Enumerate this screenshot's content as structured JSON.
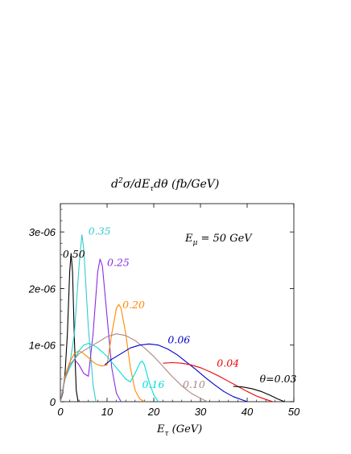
{
  "chart_data": {
    "type": "line",
    "title": "d²σ/dE_τdθ (fb/GeV)",
    "title_parts": {
      "d": "d",
      "sup": "2",
      "rest": "σ/dE",
      "sub": "τ",
      "tail": "dθ (fb/GeV)"
    },
    "xlabel": "E_τ (GeV)",
    "xlabel_parts": {
      "main": "E",
      "sub": "τ",
      "tail": " (GeV)"
    },
    "ylabel": "",
    "xlim": [
      0,
      50
    ],
    "ylim": [
      0,
      3.5e-06
    ],
    "xticks": [
      0,
      10,
      20,
      30,
      40,
      50
    ],
    "xtick_labels": [
      "0",
      "10",
      "20",
      "30",
      "40",
      "50"
    ],
    "yticks": [
      0,
      1e-06,
      2e-06,
      3e-06
    ],
    "ytick_labels": [
      "0",
      "1e-06",
      "2e-06",
      "3e-06"
    ],
    "grid": false,
    "annotation": {
      "main": "E",
      "sub": "μ",
      "tail": " = 50 GeV"
    },
    "series": [
      {
        "name": "0.50",
        "color": "#000000",
        "points": [
          [
            0,
            0
          ],
          [
            0.5,
            1.5e-07
          ],
          [
            1,
            5e-07
          ],
          [
            1.5,
            1.2e-06
          ],
          [
            2,
            2.3e-06
          ],
          [
            2.3,
            2.62e-06
          ],
          [
            2.6,
            2.3e-06
          ],
          [
            3,
            1.1e-06
          ],
          [
            3.4,
            2e-07
          ],
          [
            3.8,
            0
          ]
        ]
      },
      {
        "name": "0.35",
        "color": "#33cccc",
        "points": [
          [
            0,
            0
          ],
          [
            0.5,
            2e-07
          ],
          [
            1,
            4.5e-07
          ],
          [
            2,
            6.5e-07
          ],
          [
            3,
            1.2e-06
          ],
          [
            4,
            2.4e-06
          ],
          [
            4.6,
            2.95e-06
          ],
          [
            5,
            2.7e-06
          ],
          [
            6,
            1.3e-06
          ],
          [
            7,
            3e-07
          ],
          [
            7.6,
            0
          ]
        ]
      },
      {
        "name": "0.25",
        "color": "#8a2be2",
        "points": [
          [
            0,
            0
          ],
          [
            0.5,
            2e-07
          ],
          [
            1,
            4.5e-07
          ],
          [
            2,
            6.5e-07
          ],
          [
            3,
            7.5e-07
          ],
          [
            4,
            6.5e-07
          ],
          [
            5,
            5e-07
          ],
          [
            6,
            4.5e-07
          ],
          [
            7,
            1.2e-06
          ],
          [
            8,
            2.3e-06
          ],
          [
            8.5,
            2.52e-06
          ],
          [
            9,
            2.4e-06
          ],
          [
            10,
            1.5e-06
          ],
          [
            11,
            6e-07
          ],
          [
            12,
            1.5e-07
          ],
          [
            13,
            0
          ]
        ]
      },
      {
        "name": "0.20",
        "color": "#ff8800",
        "points": [
          [
            0,
            0
          ],
          [
            0.5,
            2e-07
          ],
          [
            1,
            4.5e-07
          ],
          [
            2,
            7e-07
          ],
          [
            3,
            8.5e-07
          ],
          [
            4,
            9e-07
          ],
          [
            5,
            8.5e-07
          ],
          [
            6,
            7.8e-07
          ],
          [
            7,
            7e-07
          ],
          [
            8,
            6.5e-07
          ],
          [
            9,
            6.3e-07
          ],
          [
            10,
            6.5e-07
          ],
          [
            11,
            1.2e-06
          ],
          [
            12,
            1.65e-06
          ],
          [
            12.5,
            1.72e-06
          ],
          [
            13,
            1.65e-06
          ],
          [
            14,
            1.2e-06
          ],
          [
            15,
            6e-07
          ],
          [
            16,
            2e-07
          ],
          [
            17,
            5e-08
          ],
          [
            18,
            0
          ]
        ]
      },
      {
        "name": "0.16",
        "color": "#00dddd",
        "points": [
          [
            0,
            0
          ],
          [
            0.5,
            2e-07
          ],
          [
            1,
            4e-07
          ],
          [
            2,
            6e-07
          ],
          [
            3,
            7.5e-07
          ],
          [
            4,
            9e-07
          ],
          [
            5,
            1e-06
          ],
          [
            6,
            1.03e-06
          ],
          [
            7,
            1e-06
          ],
          [
            8,
            9.5e-07
          ],
          [
            10,
            8e-07
          ],
          [
            12,
            6e-07
          ],
          [
            14,
            4e-07
          ],
          [
            15,
            3.5e-07
          ],
          [
            16,
            5e-07
          ],
          [
            17,
            6.8e-07
          ],
          [
            17.5,
            7.2e-07
          ],
          [
            18,
            6.5e-07
          ],
          [
            19,
            3.5e-07
          ],
          [
            20,
            1.2e-07
          ],
          [
            21,
            0
          ]
        ]
      },
      {
        "name": "0.10",
        "color": "#aa8888",
        "points": [
          [
            0,
            0
          ],
          [
            1,
            4e-07
          ],
          [
            2,
            6.5e-07
          ],
          [
            4,
            8.5e-07
          ],
          [
            6,
            9.5e-07
          ],
          [
            8,
            1.05e-06
          ],
          [
            10,
            1.15e-06
          ],
          [
            12,
            1.2e-06
          ],
          [
            14,
            1.17e-06
          ],
          [
            16,
            1.08e-06
          ],
          [
            18,
            9.5e-07
          ],
          [
            20,
            8e-07
          ],
          [
            22,
            6.2e-07
          ],
          [
            24,
            4.4e-07
          ],
          [
            26,
            2.8e-07
          ],
          [
            28,
            1.5e-07
          ],
          [
            30,
            6e-08
          ],
          [
            31.5,
            0
          ]
        ]
      },
      {
        "name": "0.06",
        "color": "#0000cc",
        "points": [
          [
            9.5,
            6.5e-07
          ],
          [
            11,
            7.5e-07
          ],
          [
            13,
            8.5e-07
          ],
          [
            15,
            9.5e-07
          ],
          [
            17,
            1e-06
          ],
          [
            19,
            1.02e-06
          ],
          [
            21,
            1e-06
          ],
          [
            23,
            9.3e-07
          ],
          [
            25,
            8.3e-07
          ],
          [
            27,
            7e-07
          ],
          [
            29,
            5.7e-07
          ],
          [
            31,
            4.3e-07
          ],
          [
            33,
            3e-07
          ],
          [
            35,
            1.8e-07
          ],
          [
            37,
            9e-08
          ],
          [
            39,
            3e-08
          ],
          [
            40,
            0
          ]
        ]
      },
      {
        "name": "0.04",
        "color": "#ee0000",
        "points": [
          [
            22,
            6.8e-07
          ],
          [
            24,
            6.9e-07
          ],
          [
            26,
            6.8e-07
          ],
          [
            28,
            6.5e-07
          ],
          [
            30,
            6e-07
          ],
          [
            32,
            5.3e-07
          ],
          [
            34,
            4.5e-07
          ],
          [
            36,
            3.6e-07
          ],
          [
            38,
            2.7e-07
          ],
          [
            40,
            1.8e-07
          ],
          [
            42,
            1e-07
          ],
          [
            44,
            4e-08
          ],
          [
            45.5,
            0
          ]
        ]
      },
      {
        "name": "θ=0.03",
        "color": "#000000",
        "points": [
          [
            37,
            2.7e-07
          ],
          [
            39,
            2.6e-07
          ],
          [
            41,
            2.3e-07
          ],
          [
            43,
            1.8e-07
          ],
          [
            45,
            1.1e-07
          ],
          [
            46.5,
            5e-08
          ],
          [
            48,
            0
          ]
        ]
      }
    ],
    "curve_labels": [
      {
        "text": "0.50",
        "x": 0.5,
        "y": 2.55e-06,
        "color": "#000000"
      },
      {
        "text": "0.35",
        "x": 6.0,
        "y": 2.95e-06,
        "color": "#33cccc"
      },
      {
        "text": "0.25",
        "x": 10.0,
        "y": 2.4e-06,
        "color": "#8a2be2"
      },
      {
        "text": "0.20",
        "x": 13.3,
        "y": 1.65e-06,
        "color": "#ff8800"
      },
      {
        "text": "0.16",
        "x": 17.5,
        "y": 2.4e-07,
        "color": "#00dddd"
      },
      {
        "text": "0.10",
        "x": 26.2,
        "y": 2.4e-07,
        "color": "#aa8888"
      },
      {
        "text": "0.06",
        "x": 23.0,
        "y": 1.03e-06,
        "color": "#0000cc"
      },
      {
        "text": "0.04",
        "x": 33.5,
        "y": 6.2e-07,
        "color": "#ee0000"
      },
      {
        "text": "θ=0.03",
        "x": 42.7,
        "y": 3.4e-07,
        "color": "#000000"
      }
    ]
  }
}
